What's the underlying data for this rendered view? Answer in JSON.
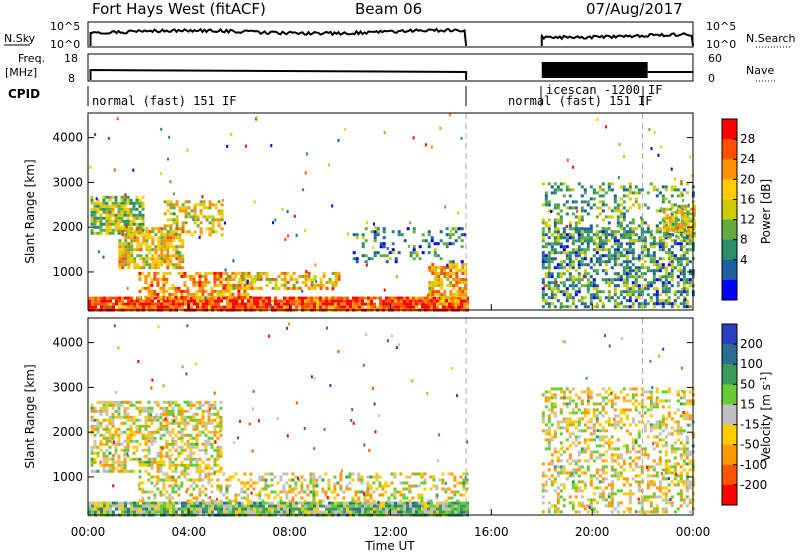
{
  "header": {
    "radar": "Fort Hays West (fitACF)",
    "beam": "Beam 06",
    "date": "07/Aug/2017"
  },
  "panels": {
    "nsky": {
      "left_label": "N.Sky",
      "right_label": "N.Search",
      "left_ticks": [
        "10^5",
        "10^0"
      ],
      "right_ticks": [
        "10^5",
        "10^0"
      ]
    },
    "freq": {
      "left_label_1": "Freq.",
      "left_label_2": "[MHz]",
      "right_label": "Nave",
      "left_ticks": [
        "18",
        "8"
      ],
      "right_ticks": [
        "60",
        "0"
      ]
    },
    "cpid": {
      "label": "CPID",
      "segments": [
        "normal (fast) 151 IF",
        "normal (fast) 151 IF",
        "icescan -1200",
        "IF"
      ]
    }
  },
  "chart_data": [
    {
      "type": "heatmap",
      "name": "Power",
      "ylabel": "Slant Range [km]",
      "ylim": [
        150,
        4550
      ],
      "yticks": [
        1000,
        2000,
        3000,
        4000
      ],
      "xlim_hours": [
        0,
        24
      ],
      "gap_hours": [
        15.0,
        18.0
      ],
      "colorbar": {
        "label": "Power [dB]",
        "ticks": [
          "28",
          "24",
          "20",
          "16",
          "12",
          "8",
          "4"
        ],
        "colors": [
          "#ff0000",
          "#ff5000",
          "#ff9000",
          "#ffcc00",
          "#cccc00",
          "#66aa44",
          "#2a8f66",
          "#1f5fa0",
          "#0000ff"
        ]
      },
      "regions": [
        {
          "t0": 0.0,
          "t1": 15.0,
          "r0": 180,
          "r1": 450,
          "level": 0.85,
          "density": 0.95
        },
        {
          "t0": 0.1,
          "t1": 2.2,
          "r0": 1850,
          "r1": 2700,
          "level": 0.45,
          "density": 0.8
        },
        {
          "t0": 1.2,
          "t1": 3.8,
          "r0": 1100,
          "r1": 2000,
          "level": 0.6,
          "density": 0.75
        },
        {
          "t0": 3.0,
          "t1": 5.3,
          "r0": 1800,
          "r1": 2600,
          "level": 0.55,
          "density": 0.5
        },
        {
          "t0": 2.0,
          "t1": 6.5,
          "r0": 450,
          "r1": 1000,
          "level": 0.7,
          "density": 0.6
        },
        {
          "t0": 5.5,
          "t1": 10.0,
          "r0": 600,
          "r1": 1000,
          "level": 0.6,
          "density": 0.55
        },
        {
          "t0": 13.5,
          "t1": 15.0,
          "r0": 450,
          "r1": 1200,
          "level": 0.65,
          "density": 0.7
        },
        {
          "t0": 10.5,
          "t1": 15.0,
          "r0": 1200,
          "r1": 2000,
          "level": 0.25,
          "density": 0.2
        },
        {
          "t0": 18.0,
          "t1": 24.0,
          "r0": 200,
          "r1": 2000,
          "level": 0.3,
          "density": 0.55
        },
        {
          "t0": 18.0,
          "t1": 24.0,
          "r0": 1600,
          "r1": 3000,
          "level": 0.35,
          "density": 0.3
        },
        {
          "t0": 22.8,
          "t1": 24.0,
          "r0": 1800,
          "r1": 2500,
          "level": 0.55,
          "density": 0.7
        }
      ]
    },
    {
      "type": "heatmap",
      "name": "Velocity",
      "ylabel": "Slant Range [km]",
      "ylim": [
        150,
        4550
      ],
      "yticks": [
        1000,
        2000,
        3000,
        4000
      ],
      "xlim_hours": [
        0,
        24
      ],
      "xticks": [
        "00:00",
        "04:00",
        "08:00",
        "12:00",
        "16:00",
        "20:00",
        "00:00"
      ],
      "xlabel": "Time UT",
      "gap_hours": [
        15.0,
        18.0
      ],
      "colorbar": {
        "label": "Velocity [m s^-1]",
        "ticks": [
          "200",
          "100",
          "50",
          "15",
          "-15",
          "-50",
          "-100",
          "-200"
        ],
        "colors": [
          "#2a3fbf",
          "#2a6f8f",
          "#3a9a5a",
          "#66cc33",
          "#c0c0c0",
          "#ffcc00",
          "#ff9900",
          "#ff5500",
          "#ff0000"
        ]
      },
      "regions": [
        {
          "t0": 0.0,
          "t1": 15.0,
          "r0": 180,
          "r1": 450,
          "level": 0.6,
          "density": 0.95
        },
        {
          "t0": 0.1,
          "t1": 5.3,
          "r0": 1100,
          "r1": 2700,
          "level": 0.45,
          "density": 0.55
        },
        {
          "t0": 2.0,
          "t1": 15.0,
          "r0": 450,
          "r1": 1100,
          "level": 0.45,
          "density": 0.4
        },
        {
          "t0": 18.0,
          "t1": 24.0,
          "r0": 200,
          "r1": 3000,
          "level": 0.45,
          "density": 0.4
        }
      ]
    }
  ]
}
